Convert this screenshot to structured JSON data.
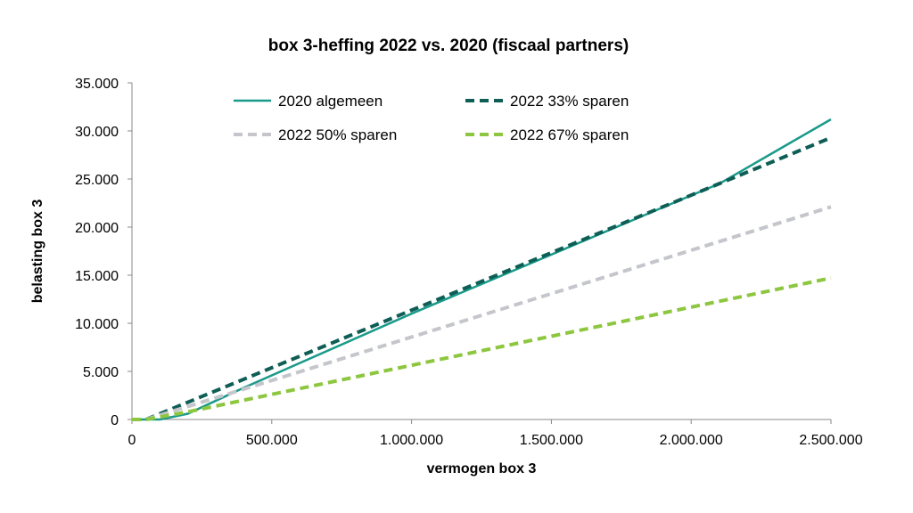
{
  "chart_data": {
    "type": "line",
    "title": "box 3-heffing 2022 vs. 2020 (fiscaal partners)",
    "xlabel": "vermogen box 3",
    "ylabel": "belasting box 3",
    "xlim": [
      0,
      2500000
    ],
    "ylim": [
      0,
      35000
    ],
    "x_ticks": [
      0,
      500000,
      1000000,
      1500000,
      2000000,
      2500000
    ],
    "x_tick_labels": [
      "0",
      "500.000",
      "1.000.000",
      "1.500.000",
      "2.000.000",
      "2.500.000"
    ],
    "y_ticks": [
      0,
      5000,
      10000,
      15000,
      20000,
      25000,
      30000,
      35000
    ],
    "y_tick_labels": [
      "0",
      "5.000",
      "10.000",
      "15.000",
      "20.000",
      "25.000",
      "30.000",
      "35.000"
    ],
    "grid": false,
    "legend_placement": "top",
    "series": [
      {
        "name": "2020 algemeen",
        "color": "#1a9a8a",
        "style": "solid",
        "points": [
          [
            0,
            0
          ],
          [
            100000,
            0
          ],
          [
            200000,
            600
          ],
          [
            400000,
            3300
          ],
          [
            1000000,
            11000
          ],
          [
            2000000,
            23300
          ],
          [
            2100000,
            24500
          ],
          [
            2500000,
            31200
          ]
        ]
      },
      {
        "name": "2022 33% sparen",
        "color": "#0e5e55",
        "style": "dashed",
        "points": [
          [
            0,
            0
          ],
          [
            50000,
            0
          ],
          [
            2500000,
            29300
          ]
        ]
      },
      {
        "name": "2022 50% sparen",
        "color": "#c4c6cb",
        "style": "dashed",
        "points": [
          [
            0,
            0
          ],
          [
            50000,
            0
          ],
          [
            2500000,
            22100
          ]
        ]
      },
      {
        "name": "2022 67% sparen",
        "color": "#8dc63f",
        "style": "dashed",
        "points": [
          [
            0,
            0
          ],
          [
            50000,
            0
          ],
          [
            200000,
            800
          ],
          [
            2500000,
            14700
          ]
        ]
      }
    ]
  }
}
